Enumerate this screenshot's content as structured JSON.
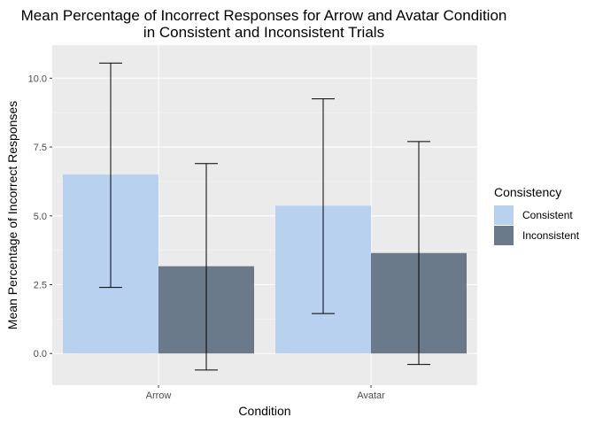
{
  "chart_data": {
    "type": "bar",
    "title": [
      "Mean Percentage of Incorrect Responses for Arrow and Avatar Condition",
      "in Consistent and Inconsistent Trials"
    ],
    "xlabel": "Condition",
    "ylabel": "Mean Percentage of Incorrect Responses",
    "categories": [
      "Arrow",
      "Avatar"
    ],
    "ylim": [
      -1.15,
      11.2
    ],
    "yticks": [
      0.0,
      2.5,
      5.0,
      7.5,
      10.0
    ],
    "ytick_labels": [
      "0.0",
      "2.5",
      "5.0",
      "7.5",
      "10.0"
    ],
    "grid": true,
    "legend": {
      "title": "Consistency",
      "placement": "right"
    },
    "series": [
      {
        "name": "Consistent",
        "color": "#b8d1ee",
        "values": [
          6.5,
          5.37
        ],
        "error_low": [
          2.4,
          1.45
        ],
        "error_high": [
          10.55,
          9.25
        ]
      },
      {
        "name": "Inconsistent",
        "color": "#6b7a8a",
        "values": [
          3.17,
          3.65
        ],
        "error_low": [
          -0.6,
          -0.4
        ],
        "error_high": [
          6.9,
          7.7
        ]
      }
    ]
  }
}
